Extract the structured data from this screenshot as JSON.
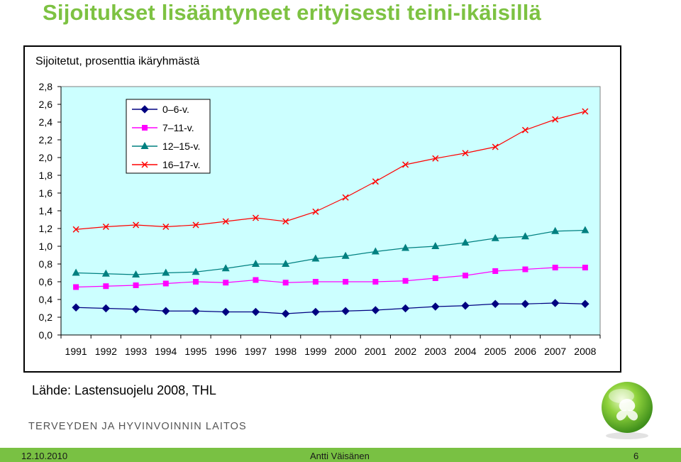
{
  "slide": {
    "title": "Sijoitukset lisääntyneet erityisesti teini-ikäisillä",
    "source": "Lähde: Lastensuojelu 2008, THL",
    "organization": "TERVEYDEN JA HYVINVOINNIN LAITOS",
    "logo_icon": "thl-sphere-logo-icon"
  },
  "footer": {
    "date": "12.10.2010",
    "author": "Antti Väisänen",
    "page": "6",
    "color": "#79c143"
  },
  "chart_data": {
    "type": "line",
    "title": "Sijoitetut, prosenttia ikäryhmästä",
    "xlabel": "",
    "ylabel": "",
    "x": [
      "1991",
      "1992",
      "1993",
      "1994",
      "1995",
      "1996",
      "1997",
      "1998",
      "1999",
      "2000",
      "2001",
      "2002",
      "2003",
      "2004",
      "2005",
      "2006",
      "2007",
      "2008"
    ],
    "ylim": [
      0,
      2.8
    ],
    "yticks": [
      "0,0",
      "0,2",
      "0,4",
      "0,6",
      "0,8",
      "1,0",
      "1,2",
      "1,4",
      "1,6",
      "1,8",
      "2,0",
      "2,2",
      "2,4",
      "2,6",
      "2,8"
    ],
    "grid": false,
    "plot_background": "#ccffff",
    "legend_position": "top-left",
    "series": [
      {
        "name": "0–6-v.",
        "color": "#000080",
        "marker": "diamond",
        "values": [
          0.31,
          0.3,
          0.29,
          0.27,
          0.27,
          0.26,
          0.26,
          0.24,
          0.26,
          0.27,
          0.28,
          0.3,
          0.32,
          0.33,
          0.35,
          0.35,
          0.36,
          0.35
        ]
      },
      {
        "name": "7–11-v.",
        "color": "#ff00ff",
        "marker": "square",
        "values": [
          0.54,
          0.55,
          0.56,
          0.58,
          0.6,
          0.59,
          0.62,
          0.59,
          0.6,
          0.6,
          0.6,
          0.61,
          0.64,
          0.67,
          0.72,
          0.74,
          0.76,
          0.76
        ]
      },
      {
        "name": "12–15-v.",
        "color": "#008080",
        "marker": "triangle",
        "values": [
          0.7,
          0.69,
          0.68,
          0.7,
          0.71,
          0.75,
          0.8,
          0.8,
          0.86,
          0.89,
          0.94,
          0.98,
          1.0,
          1.04,
          1.09,
          1.11,
          1.17,
          1.18
        ]
      },
      {
        "name": "16–17-v.",
        "color": "#ff0000",
        "marker": "x",
        "values": [
          1.19,
          1.22,
          1.24,
          1.22,
          1.24,
          1.28,
          1.32,
          1.28,
          1.39,
          1.55,
          1.73,
          1.92,
          1.99,
          2.05,
          2.12,
          2.31,
          2.43,
          2.52
        ]
      }
    ]
  }
}
